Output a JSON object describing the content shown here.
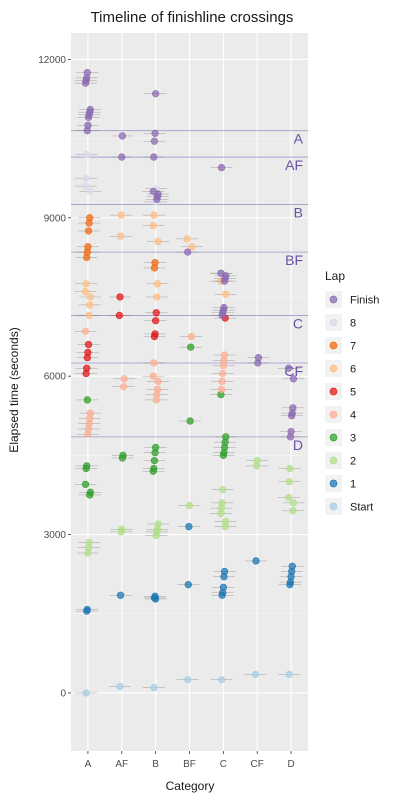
{
  "chart_data": {
    "type": "scatter",
    "title": "Timeline of finishline crossings",
    "xlabel": "Category",
    "ylabel": "Elapsed time (seconds)",
    "categories": [
      "A",
      "AF",
      "B",
      "BF",
      "C",
      "CF",
      "D"
    ],
    "ylim": [
      -1100,
      12500
    ],
    "yticks": [
      0,
      3000,
      6000,
      9000,
      12000
    ],
    "grid": true,
    "legend_title": "Lap",
    "legend_position": "right",
    "legend": [
      {
        "name": "Finish",
        "color": "#8c6bb1"
      },
      {
        "name": "8",
        "color": "#dadaeb"
      },
      {
        "name": "7",
        "color": "#f16913"
      },
      {
        "name": "6",
        "color": "#fdbe85"
      },
      {
        "name": "5",
        "color": "#e31a1c"
      },
      {
        "name": "4",
        "color": "#fcae91"
      },
      {
        "name": "3",
        "color": "#33a02c"
      },
      {
        "name": "2",
        "color": "#b2df8a"
      },
      {
        "name": "1",
        "color": "#1f78b4"
      },
      {
        "name": "Start",
        "color": "#a6cee3"
      }
    ],
    "reference_lines": [
      {
        "label": "A",
        "y": 10650
      },
      {
        "label": "AF",
        "y": 10150
      },
      {
        "label": "B",
        "y": 9250
      },
      {
        "label": "BF",
        "y": 8350
      },
      {
        "label": "C",
        "y": 7150
      },
      {
        "label": "CF",
        "y": 6250
      },
      {
        "label": "D",
        "y": 4850
      }
    ],
    "series": [
      {
        "name": "Start",
        "points": [
          {
            "x": "A",
            "y": 0
          },
          {
            "x": "AF",
            "y": 120
          },
          {
            "x": "B",
            "y": 100
          },
          {
            "x": "BF",
            "y": 250
          },
          {
            "x": "C",
            "y": 250
          },
          {
            "x": "CF",
            "y": 350
          },
          {
            "x": "D",
            "y": 350
          }
        ]
      },
      {
        "name": "1",
        "points": [
          {
            "x": "A",
            "y": 1550
          },
          {
            "x": "A",
            "y": 1580
          },
          {
            "x": "AF",
            "y": 1850
          },
          {
            "x": "B",
            "y": 1800
          },
          {
            "x": "B",
            "y": 1830
          },
          {
            "x": "B",
            "y": 1780
          },
          {
            "x": "BF",
            "y": 2050
          },
          {
            "x": "BF",
            "y": 3150
          },
          {
            "x": "C",
            "y": 1850
          },
          {
            "x": "C",
            "y": 1900
          },
          {
            "x": "C",
            "y": 2000
          },
          {
            "x": "C",
            "y": 2200
          },
          {
            "x": "C",
            "y": 2300
          },
          {
            "x": "CF",
            "y": 2500
          },
          {
            "x": "D",
            "y": 2050
          },
          {
            "x": "D",
            "y": 2100
          },
          {
            "x": "D",
            "y": 2200
          },
          {
            "x": "D",
            "y": 2300
          },
          {
            "x": "D",
            "y": 2400
          }
        ]
      },
      {
        "name": "2",
        "points": [
          {
            "x": "A",
            "y": 2650
          },
          {
            "x": "A",
            "y": 2750
          },
          {
            "x": "A",
            "y": 2850
          },
          {
            "x": "AF",
            "y": 3050
          },
          {
            "x": "AF",
            "y": 3100
          },
          {
            "x": "B",
            "y": 2980
          },
          {
            "x": "B",
            "y": 3050
          },
          {
            "x": "B",
            "y": 3100
          },
          {
            "x": "B",
            "y": 3200
          },
          {
            "x": "BF",
            "y": 3550
          },
          {
            "x": "C",
            "y": 3150
          },
          {
            "x": "C",
            "y": 3250
          },
          {
            "x": "C",
            "y": 3400
          },
          {
            "x": "C",
            "y": 3500
          },
          {
            "x": "C",
            "y": 3600
          },
          {
            "x": "C",
            "y": 3850
          },
          {
            "x": "CF",
            "y": 4300
          },
          {
            "x": "CF",
            "y": 4400
          },
          {
            "x": "D",
            "y": 3450
          },
          {
            "x": "D",
            "y": 3600
          },
          {
            "x": "D",
            "y": 3700
          },
          {
            "x": "D",
            "y": 4000
          },
          {
            "x": "D",
            "y": 4250
          }
        ]
      },
      {
        "name": "3",
        "points": [
          {
            "x": "A",
            "y": 3750
          },
          {
            "x": "A",
            "y": 3800
          },
          {
            "x": "A",
            "y": 3950
          },
          {
            "x": "A",
            "y": 4250
          },
          {
            "x": "A",
            "y": 4300
          },
          {
            "x": "AF",
            "y": 4450
          },
          {
            "x": "AF",
            "y": 4500
          },
          {
            "x": "B",
            "y": 4200
          },
          {
            "x": "B",
            "y": 4250
          },
          {
            "x": "B",
            "y": 4400
          },
          {
            "x": "B",
            "y": 4550
          },
          {
            "x": "B",
            "y": 4650
          },
          {
            "x": "BF",
            "y": 5150
          },
          {
            "x": "C",
            "y": 4500
          },
          {
            "x": "C",
            "y": 4550
          },
          {
            "x": "C",
            "y": 4650
          },
          {
            "x": "C",
            "y": 4750
          },
          {
            "x": "C",
            "y": 4850
          },
          {
            "x": "C",
            "y": 5650
          },
          {
            "x": "A",
            "y": 5550
          },
          {
            "x": "BF",
            "y": 6550
          }
        ]
      },
      {
        "name": "4",
        "points": [
          {
            "x": "A",
            "y": 4900
          },
          {
            "x": "A",
            "y": 5000
          },
          {
            "x": "A",
            "y": 5100
          },
          {
            "x": "A",
            "y": 5200
          },
          {
            "x": "A",
            "y": 5300
          },
          {
            "x": "AF",
            "y": 5800
          },
          {
            "x": "AF",
            "y": 5950
          },
          {
            "x": "B",
            "y": 5550
          },
          {
            "x": "B",
            "y": 5650
          },
          {
            "x": "B",
            "y": 5750
          },
          {
            "x": "B",
            "y": 5900
          },
          {
            "x": "B",
            "y": 6000
          },
          {
            "x": "B",
            "y": 6250
          },
          {
            "x": "BF",
            "y": 6750
          },
          {
            "x": "C",
            "y": 5750
          },
          {
            "x": "C",
            "y": 5900
          },
          {
            "x": "C",
            "y": 6050
          },
          {
            "x": "C",
            "y": 6200
          },
          {
            "x": "C",
            "y": 6300
          },
          {
            "x": "C",
            "y": 6400
          },
          {
            "x": "A",
            "y": 6850
          }
        ]
      },
      {
        "name": "5",
        "points": [
          {
            "x": "A",
            "y": 6050
          },
          {
            "x": "A",
            "y": 6150
          },
          {
            "x": "A",
            "y": 6350
          },
          {
            "x": "A",
            "y": 6450
          },
          {
            "x": "A",
            "y": 6600
          },
          {
            "x": "AF",
            "y": 7150
          },
          {
            "x": "AF",
            "y": 7500
          },
          {
            "x": "B",
            "y": 6750
          },
          {
            "x": "B",
            "y": 6800
          },
          {
            "x": "B",
            "y": 7050
          },
          {
            "x": "B",
            "y": 7200
          },
          {
            "x": "C",
            "y": 7100
          }
        ]
      },
      {
        "name": "6",
        "points": [
          {
            "x": "A",
            "y": 7150
          },
          {
            "x": "A",
            "y": 7350
          },
          {
            "x": "A",
            "y": 7500
          },
          {
            "x": "A",
            "y": 7600
          },
          {
            "x": "A",
            "y": 7750
          },
          {
            "x": "AF",
            "y": 8650
          },
          {
            "x": "AF",
            "y": 9050
          },
          {
            "x": "B",
            "y": 7500
          },
          {
            "x": "B",
            "y": 7750
          },
          {
            "x": "B",
            "y": 8550
          },
          {
            "x": "B",
            "y": 8850
          },
          {
            "x": "B",
            "y": 9050
          },
          {
            "x": "BF",
            "y": 8450
          },
          {
            "x": "BF",
            "y": 8600
          },
          {
            "x": "C",
            "y": 7550
          },
          {
            "x": "C",
            "y": 7800
          }
        ]
      },
      {
        "name": "7",
        "points": [
          {
            "x": "A",
            "y": 8250
          },
          {
            "x": "A",
            "y": 8350
          },
          {
            "x": "A",
            "y": 8450
          },
          {
            "x": "A",
            "y": 8750
          },
          {
            "x": "A",
            "y": 8900
          },
          {
            "x": "A",
            "y": 9000
          },
          {
            "x": "B",
            "y": 8050
          },
          {
            "x": "B",
            "y": 8150
          }
        ]
      },
      {
        "name": "8",
        "points": [
          {
            "x": "A",
            "y": 9500
          },
          {
            "x": "A",
            "y": 9600
          },
          {
            "x": "A",
            "y": 9750
          },
          {
            "x": "A",
            "y": 10200
          },
          {
            "x": "B",
            "y": 9300
          },
          {
            "x": "B",
            "y": 9550
          },
          {
            "x": "C",
            "y": 7950
          }
        ]
      },
      {
        "name": "Finish",
        "points": [
          {
            "x": "A",
            "y": 10650
          },
          {
            "x": "A",
            "y": 10750
          },
          {
            "x": "A",
            "y": 10900
          },
          {
            "x": "A",
            "y": 10950
          },
          {
            "x": "A",
            "y": 11000
          },
          {
            "x": "A",
            "y": 11050
          },
          {
            "x": "A",
            "y": 11550
          },
          {
            "x": "A",
            "y": 11600
          },
          {
            "x": "A",
            "y": 11650
          },
          {
            "x": "A",
            "y": 11750
          },
          {
            "x": "AF",
            "y": 10150
          },
          {
            "x": "AF",
            "y": 10550
          },
          {
            "x": "B",
            "y": 9350
          },
          {
            "x": "B",
            "y": 9400
          },
          {
            "x": "B",
            "y": 9450
          },
          {
            "x": "B",
            "y": 9500
          },
          {
            "x": "B",
            "y": 10150
          },
          {
            "x": "B",
            "y": 10450
          },
          {
            "x": "B",
            "y": 10600
          },
          {
            "x": "B",
            "y": 11350
          },
          {
            "x": "BF",
            "y": 8350
          },
          {
            "x": "C",
            "y": 7150
          },
          {
            "x": "C",
            "y": 7200
          },
          {
            "x": "C",
            "y": 7250
          },
          {
            "x": "C",
            "y": 7300
          },
          {
            "x": "C",
            "y": 7800
          },
          {
            "x": "C",
            "y": 7850
          },
          {
            "x": "C",
            "y": 7900
          },
          {
            "x": "C",
            "y": 7950
          },
          {
            "x": "C",
            "y": 9950
          },
          {
            "x": "CF",
            "y": 6250
          },
          {
            "x": "CF",
            "y": 6350
          },
          {
            "x": "D",
            "y": 4850
          },
          {
            "x": "D",
            "y": 4950
          },
          {
            "x": "D",
            "y": 5250
          },
          {
            "x": "D",
            "y": 5300
          },
          {
            "x": "D",
            "y": 5400
          },
          {
            "x": "D",
            "y": 5950
          },
          {
            "x": "D",
            "y": 6150
          }
        ]
      }
    ]
  }
}
